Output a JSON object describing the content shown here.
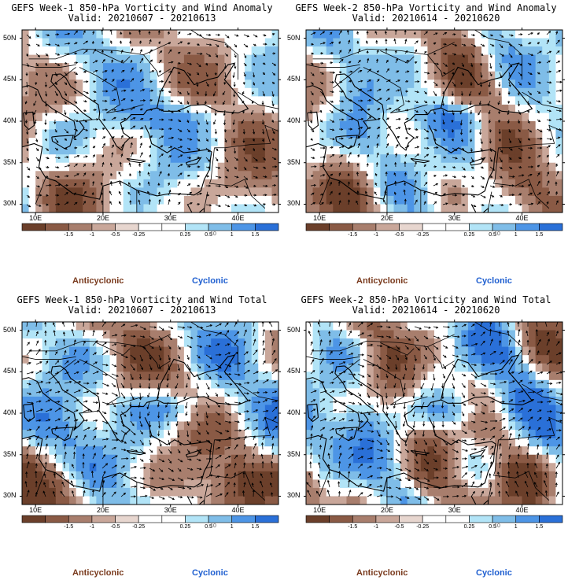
{
  "panels": [
    {
      "title": "GEFS Week-1 850-hPa Vorticity and Wind Anomaly",
      "valid": "Valid: 20210607 - 20210613"
    },
    {
      "title": "GEFS Week-2 850-hPa Vorticity and Wind Anomaly",
      "valid": "Valid: 20210614 - 20210620"
    },
    {
      "title": "GEFS Week-1 850-hPa Vorticity and Wind Total",
      "valid": "Valid: 20210607 - 20210613"
    },
    {
      "title": "GEFS Week-2 850-hPa Vorticity and Wind Total",
      "valid": "Valid: 20210614 - 20210620"
    }
  ],
  "axes": {
    "lat_labels": [
      "50N",
      "45N",
      "40N",
      "35N",
      "30N"
    ],
    "lon_labels": [
      "10E",
      "20E",
      "30E",
      "40E"
    ]
  },
  "colorbar": {
    "labels": [
      "-1.5",
      "-1",
      "-0.5",
      "-0.25",
      "0.25",
      "0.5",
      "1",
      "1.5"
    ],
    "scale_note": "10",
    "colors": [
      "#6b3f2a",
      "#8a5a45",
      "#a87e6d",
      "#c9a79a",
      "#e7d6cf",
      "#ffffff",
      "#e8f8fc",
      "#b2e4f7",
      "#7fbde8",
      "#4d95e6",
      "#2a70d8"
    ]
  },
  "legend": {
    "anticyclonic": "Anticyclonic",
    "cyclonic": "Cyclonic",
    "anticyclonic_color": "#7a3b1e",
    "cyclonic_color": "#1f5fd0"
  },
  "chart_data": [
    {
      "type": "heatmap",
      "title": "GEFS Week-1 850-hPa Vorticity and Wind Anomaly",
      "subtitle": "Valid: 20210607 - 20210613",
      "xlim": [
        8,
        46
      ],
      "ylim": [
        29,
        51
      ],
      "levels": [
        -1.5,
        -1,
        -0.5,
        -0.25,
        0.25,
        0.5,
        1,
        1.5
      ]
    },
    {
      "type": "heatmap",
      "title": "GEFS Week-2 850-hPa Vorticity and Wind Anomaly",
      "subtitle": "Valid: 20210614 - 20210620",
      "xlim": [
        8,
        46
      ],
      "ylim": [
        29,
        51
      ],
      "levels": [
        -1.5,
        -1,
        -0.5,
        -0.25,
        0.25,
        0.5,
        1,
        1.5
      ]
    },
    {
      "type": "heatmap",
      "title": "GEFS Week-1 850-hPa Vorticity and Wind Total",
      "subtitle": "Valid: 20210607 - 20210613",
      "xlim": [
        8,
        46
      ],
      "ylim": [
        29,
        51
      ],
      "levels": [
        -1.5,
        -1,
        -0.5,
        -0.25,
        0.25,
        0.5,
        1,
        1.5
      ]
    },
    {
      "type": "heatmap",
      "title": "GEFS Week-2 850-hPa Vorticity and Wind Total",
      "subtitle": "Valid: 20210614 - 20210620",
      "xlim": [
        8,
        46
      ],
      "ylim": [
        29,
        51
      ],
      "levels": [
        -1.5,
        -1,
        -0.5,
        -0.25,
        0.25,
        0.5,
        1,
        1.5
      ]
    }
  ]
}
